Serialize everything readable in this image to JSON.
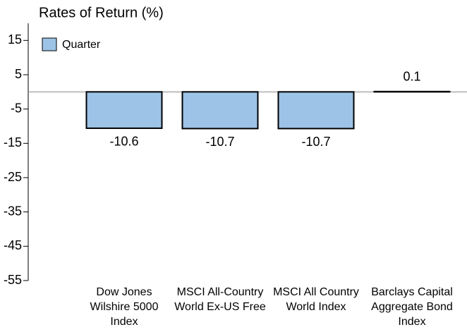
{
  "chart_data": {
    "type": "bar",
    "title": "Rates of Return (%)",
    "categories": [
      "Dow Jones\nWilshire 5000\nIndex",
      "MSCI All-Country\nWorld Ex-US Free",
      "MSCI All Country\nWorld Index",
      "Barclays Capital\nAggregate Bond\nIndex"
    ],
    "series": [
      {
        "name": "Quarter",
        "color": "#9dc3e6",
        "values": [
          -10.6,
          -10.7,
          -10.7,
          0.1
        ]
      }
    ],
    "ylim": [
      -55,
      20
    ],
    "yticks": [
      15,
      5,
      -5,
      -15,
      -25,
      -35,
      -45,
      -55
    ],
    "legend": "upper left"
  }
}
